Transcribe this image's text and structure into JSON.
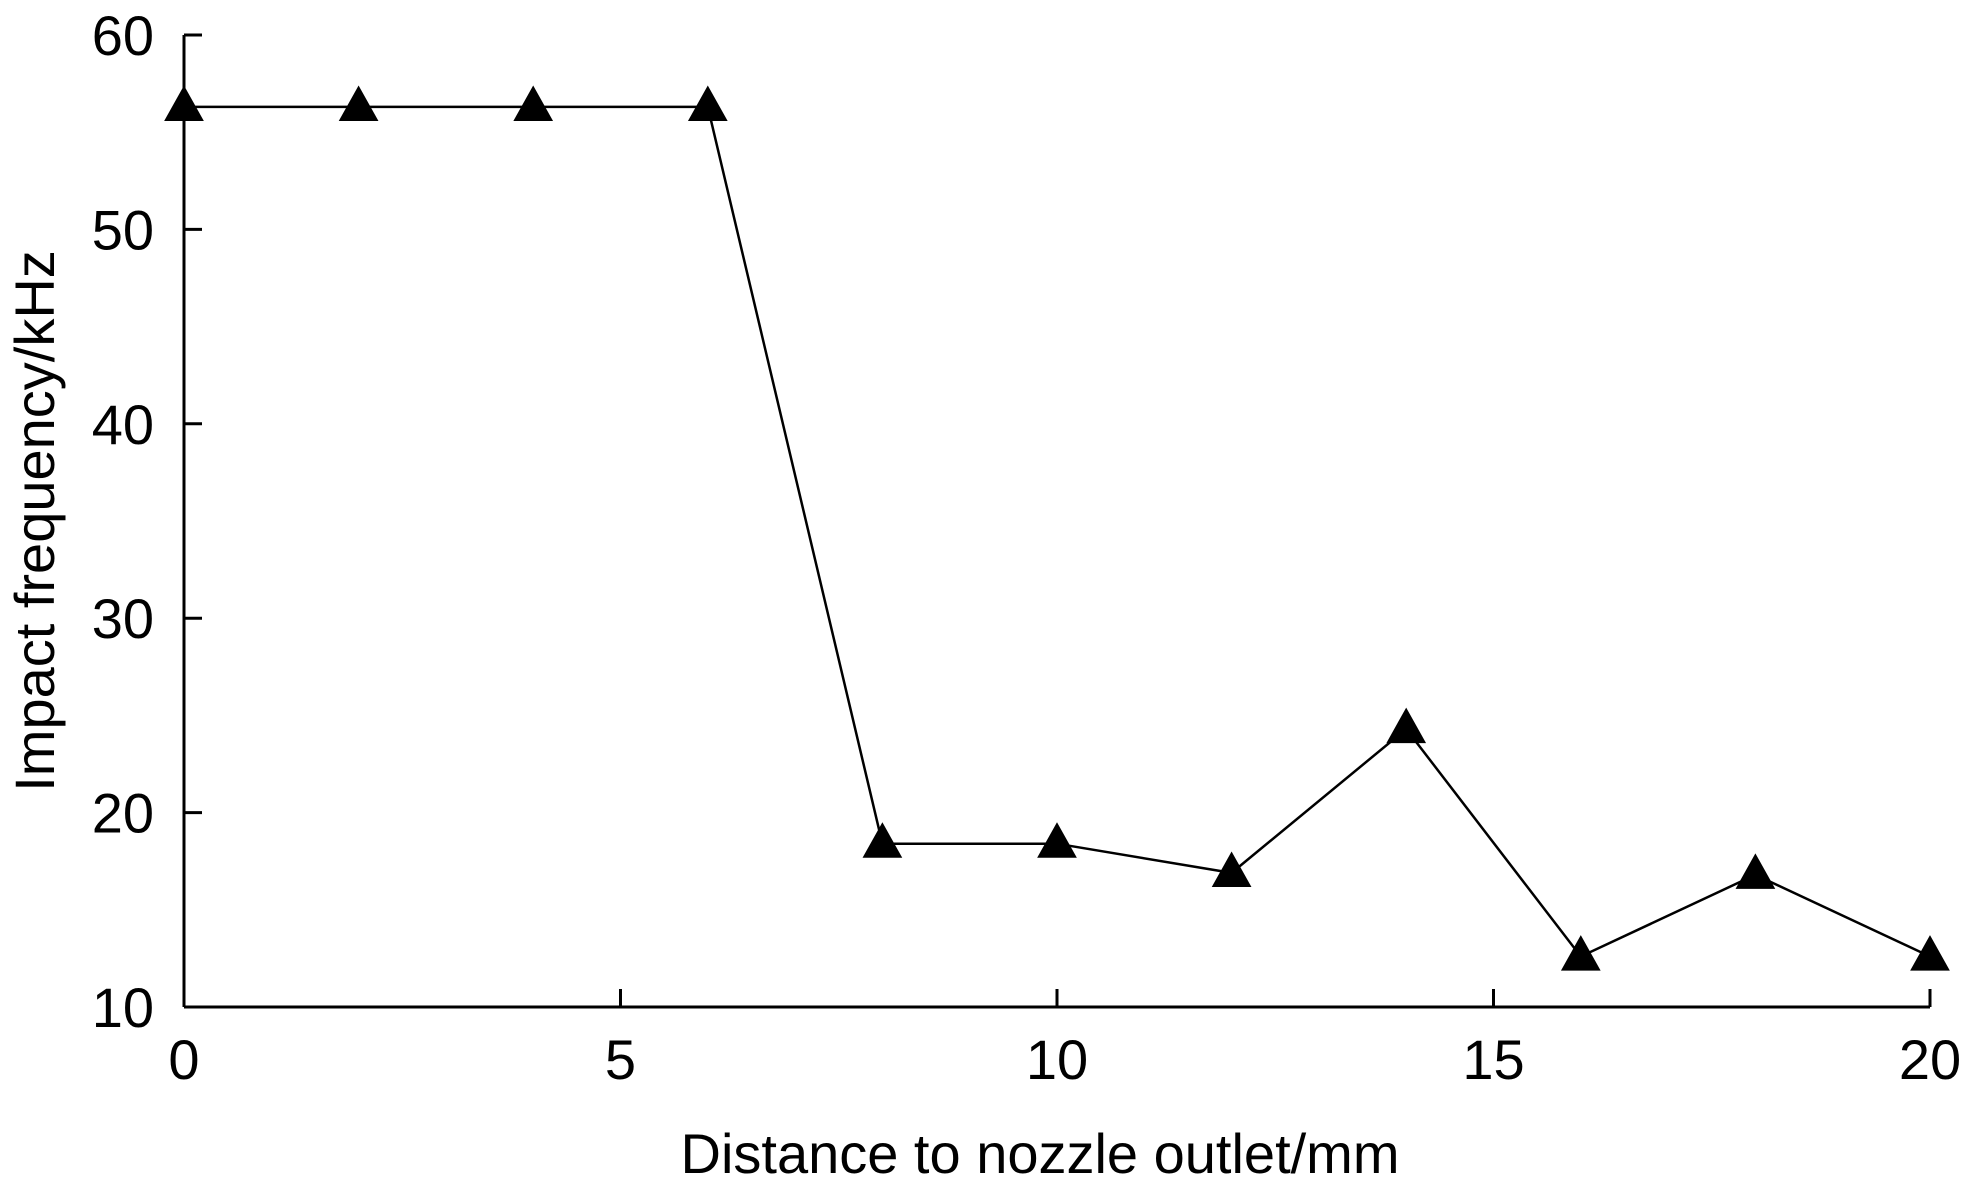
{
  "chart_data": {
    "type": "line",
    "title": "",
    "xlabel": "Distance to nozzle outlet/mm",
    "ylabel": "Impact frequency/kHz",
    "xlim": [
      0,
      20
    ],
    "ylim": [
      10,
      60
    ],
    "xticks": [
      0,
      5,
      10,
      15,
      20
    ],
    "yticks": [
      10,
      20,
      30,
      40,
      50,
      60
    ],
    "grid": false,
    "legend": "none",
    "marker": "triangle",
    "line_color": "#000000",
    "marker_color": "#000000",
    "series": [
      {
        "x": [
          0,
          2,
          4,
          6,
          8,
          10,
          12,
          14,
          16,
          18,
          20
        ],
        "y": [
          56.3,
          56.3,
          56.3,
          56.3,
          18.4,
          18.4,
          16.9,
          24.3,
          12.6,
          16.8,
          12.6
        ]
      }
    ]
  }
}
